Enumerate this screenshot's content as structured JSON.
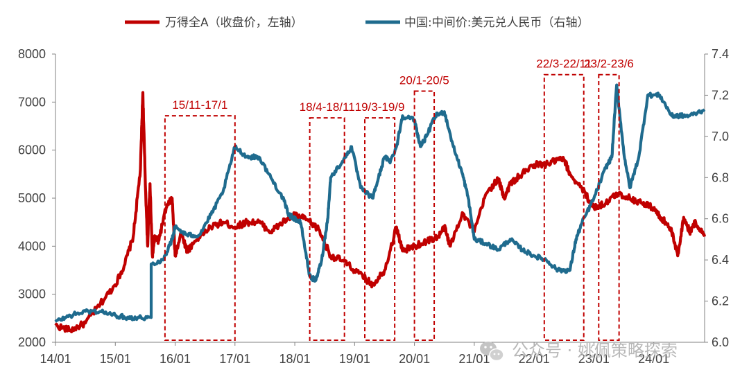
{
  "chart_data": {
    "type": "line",
    "title": "",
    "legend": [
      {
        "name": "万得全A（收盘价，左轴）",
        "color": "#c00000",
        "axis": "left"
      },
      {
        "name": "中国:中间价:美元兑人民币（右轴）",
        "color": "#1f6b8e",
        "axis": "right"
      }
    ],
    "x_ticks": [
      "14/01",
      "15/01",
      "16/01",
      "17/01",
      "18/01",
      "19/01",
      "20/01",
      "21/01",
      "22/01",
      "23/01",
      "24/01"
    ],
    "left_axis": {
      "min": 2000,
      "max": 8000,
      "ticks": [
        "2000",
        "3000",
        "4000",
        "5000",
        "6000",
        "7000",
        "8000"
      ]
    },
    "right_axis": {
      "min": 6.0,
      "max": 7.4,
      "ticks": [
        "6.0",
        "6.2",
        "6.4",
        "6.6",
        "6.8",
        "7.0",
        "7.2",
        "7.4"
      ]
    },
    "series": [
      {
        "name": "万得全A（收盘价，左轴）",
        "axis": "left",
        "t": [
          0,
          0.25,
          0.5,
          0.75,
          1.0,
          1.15,
          1.3,
          1.42,
          1.46,
          1.5,
          1.54,
          1.58,
          1.62,
          1.66,
          1.72,
          1.85,
          1.95,
          2.0,
          2.1,
          2.2,
          2.4,
          2.6,
          2.8,
          3.0,
          3.2,
          3.4,
          3.6,
          3.8,
          4.0,
          4.2,
          4.4,
          4.6,
          4.8,
          5.0,
          5.2,
          5.3,
          5.5,
          5.7,
          5.8,
          6.0,
          6.2,
          6.4,
          6.5,
          6.6,
          6.8,
          7.0,
          7.2,
          7.4,
          7.5,
          7.6,
          7.8,
          8.0,
          8.2,
          8.4,
          8.5,
          8.6,
          8.8,
          9.0,
          9.2,
          9.4,
          9.6,
          9.8,
          10.0,
          10.1,
          10.2,
          10.3,
          10.4,
          10.5,
          10.6,
          10.7,
          10.85
        ],
        "values": [
          2350,
          2250,
          2400,
          2800,
          3200,
          3600,
          4200,
          5600,
          7200,
          5400,
          4000,
          5300,
          3800,
          4200,
          4100,
          4800,
          5000,
          3800,
          4300,
          3900,
          4200,
          4400,
          4500,
          4400,
          4500,
          4500,
          4300,
          4500,
          4650,
          4550,
          4350,
          3800,
          3700,
          3500,
          3300,
          3200,
          3500,
          4400,
          3900,
          4000,
          4100,
          4200,
          4400,
          4000,
          4700,
          4300,
          5100,
          5400,
          5000,
          5300,
          5500,
          5700,
          5700,
          5800,
          5800,
          5500,
          5200,
          4800,
          4900,
          5100,
          5000,
          4900,
          4800,
          4600,
          4500,
          4300,
          3800,
          4600,
          4300,
          4500,
          4200
        ]
      },
      {
        "name": "中国:中间价:美元兑人民币（右轴）",
        "axis": "right",
        "t": [
          0,
          0.25,
          0.5,
          0.75,
          1.0,
          1.2,
          1.4,
          1.6,
          1.6,
          1.8,
          1.95,
          2.0,
          2.2,
          2.4,
          2.6,
          2.8,
          3.0,
          3.2,
          3.4,
          3.6,
          3.8,
          3.9,
          4.0,
          4.1,
          4.25,
          4.35,
          4.45,
          4.55,
          4.6,
          4.8,
          4.95,
          5.1,
          5.3,
          5.4,
          5.5,
          5.6,
          5.7,
          5.8,
          6.0,
          6.1,
          6.2,
          6.35,
          6.5,
          6.65,
          6.8,
          6.9,
          7.0,
          7.2,
          7.4,
          7.6,
          7.8,
          8.0,
          8.2,
          8.4,
          8.6,
          8.7,
          8.8,
          9.0,
          9.2,
          9.3,
          9.38,
          9.5,
          9.6,
          9.75,
          9.9,
          10.1,
          10.3,
          10.4,
          10.6,
          10.85
        ],
        "values": [
          6.1,
          6.13,
          6.15,
          6.15,
          6.13,
          6.12,
          6.12,
          6.12,
          6.38,
          6.4,
          6.5,
          6.56,
          6.52,
          6.52,
          6.62,
          6.73,
          6.95,
          6.9,
          6.9,
          6.8,
          6.7,
          6.62,
          6.6,
          6.58,
          6.32,
          6.3,
          6.4,
          6.6,
          6.8,
          6.88,
          6.95,
          6.75,
          6.7,
          6.8,
          6.9,
          6.88,
          6.95,
          7.1,
          7.08,
          6.95,
          7.0,
          7.1,
          7.12,
          6.95,
          6.82,
          6.7,
          6.5,
          6.48,
          6.45,
          6.5,
          6.45,
          6.42,
          6.4,
          6.35,
          6.35,
          6.5,
          6.58,
          6.7,
          6.85,
          6.9,
          7.25,
          6.92,
          6.75,
          6.9,
          7.2,
          7.2,
          7.1,
          7.1,
          7.1,
          7.13
        ]
      }
    ],
    "annotations": [
      {
        "label": "15/11-17/1",
        "start": 1.83,
        "end": 3.0,
        "top": 7.1
      },
      {
        "label": "18/4-18/11",
        "start": 4.25,
        "end": 4.83,
        "top": 7.09
      },
      {
        "label": "19/3-19/9",
        "start": 5.17,
        "end": 5.67,
        "top": 7.09
      },
      {
        "label": "20/1-20/5",
        "start": 6.0,
        "end": 6.33,
        "top": 7.22
      },
      {
        "label": "22/3-22/11",
        "start": 8.17,
        "end": 8.83,
        "top": 7.3
      },
      {
        "label": "23/2-23/6",
        "start": 9.08,
        "end": 9.42,
        "top": 7.3
      }
    ]
  },
  "watermark": {
    "icon": "wechat-icon",
    "text": "公众号 · 姚佩策略探索"
  }
}
